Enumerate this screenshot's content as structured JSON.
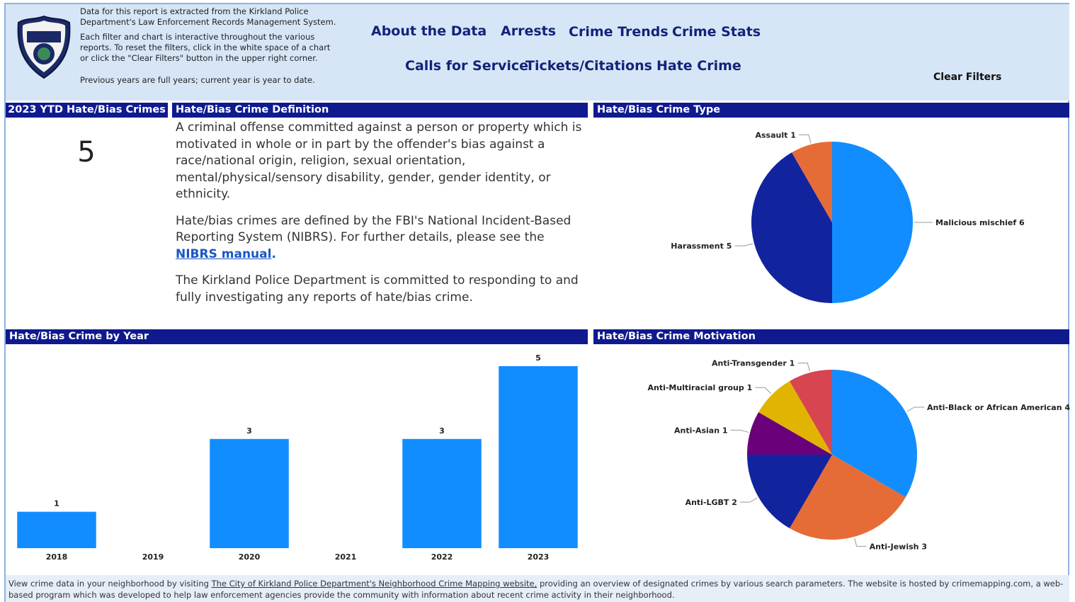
{
  "header": {
    "notes": [
      "Data for this report is extracted from the Kirkland Police Department's Law Enforcement Records Management System.",
      "Each filter and chart is interactive throughout the various reports. To reset the filters, click in the white space of a chart or click the \"Clear Filters\" button in the upper right corner.",
      "Previous years are full years; current year is year to date."
    ],
    "nav": [
      "About the Data",
      "Arrests",
      "Crime Trends",
      "Crime Stats",
      "Calls for Service",
      "Tickets/Citations",
      "Hate Crime"
    ],
    "clear_filters": "Clear Filters"
  },
  "ytd": {
    "title": "2023 YTD Hate/Bias Crimes",
    "value": 5
  },
  "definition": {
    "title": "Hate/Bias Crime Definition",
    "p1": "A criminal offense committed against a person or property which is motivated in whole or in part by the offender's bias against a race/national origin, religion, sexual orientation, mental/physical/sensory disability, gender, gender identity, or ethnicity.",
    "p2": "Hate/bias crimes are defined by the FBI's National Incident-Based Reporting System (NIBRS). For further details, please see the",
    "p2_link": "NIBRS manual",
    "p2_end": ".",
    "p3": "The Kirkland Police Department is committed to responding to and fully investigating any reports of hate/bias crime."
  },
  "chart_data": [
    {
      "type": "pie",
      "title": "Hate/Bias Crime Type",
      "categories": [
        "Malicious mischief",
        "Harassment",
        "Assault"
      ],
      "values": [
        6,
        5,
        1
      ],
      "colors": [
        "#118dff",
        "#12239e",
        "#e66c37"
      ]
    },
    {
      "type": "bar",
      "title": "Hate/Bias Crime by Year",
      "categories": [
        "2018",
        "2019",
        "2020",
        "2021",
        "2022",
        "2023"
      ],
      "values": [
        1,
        null,
        3,
        null,
        3,
        5
      ],
      "color": "#118dff"
    },
    {
      "type": "pie",
      "title": "Hate/Bias Crime Motivation",
      "categories": [
        "Anti-Black or African American",
        "Anti-Jewish",
        "Anti-LGBT",
        "Anti-Asian",
        "Anti-Multiracial group",
        "Anti-Transgender"
      ],
      "values": [
        4,
        3,
        2,
        1,
        1,
        1
      ],
      "colors": [
        "#118dff",
        "#e66c37",
        "#12239e",
        "#6b007b",
        "#e0b400",
        "#d64550"
      ]
    }
  ],
  "footer": {
    "before": "View crime data in your neighborhood by visiting",
    "link": "The City of Kirkland Police Department's Neighborhood Crime Mapping website,",
    "after": "providing an overview of designated crimes by various search parameters. The website is hosted by crimemapping.com, a web-based program which was developed to help law enforcement agencies provide the community with information about recent crime activity in their neighborhood."
  }
}
